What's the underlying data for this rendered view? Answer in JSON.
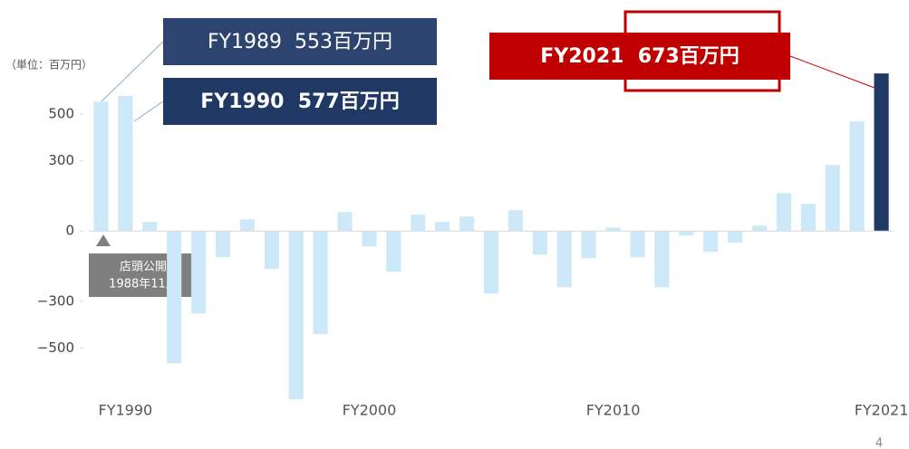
{
  "chart_data": {
    "type": "bar",
    "unit_label": "（単位：百万円）",
    "categories": [
      null,
      "FY1990",
      null,
      null,
      null,
      null,
      null,
      null,
      null,
      null,
      null,
      "FY2000",
      null,
      null,
      null,
      null,
      null,
      null,
      null,
      null,
      null,
      "FY2010",
      null,
      null,
      null,
      null,
      null,
      null,
      null,
      null,
      null,
      null,
      "FY2021"
    ],
    "values": [
      553,
      577,
      39,
      -565,
      -352,
      -112,
      50,
      -162,
      -719,
      -441,
      81,
      -66,
      -174,
      70,
      39,
      62,
      -267,
      89,
      -101,
      -240,
      -116,
      15,
      -112,
      -240,
      -19,
      -89,
      -50,
      23,
      162,
      116,
      282,
      468,
      673
    ],
    "colors": [
      "#cde9f9",
      "#cde9f9",
      "#cde9f9",
      "#cde9f9",
      "#cde9f9",
      "#cde9f9",
      "#cde9f9",
      "#cde9f9",
      "#cde9f9",
      "#cde9f9",
      "#cde9f9",
      "#cde9f9",
      "#cde9f9",
      "#cde9f9",
      "#cde9f9",
      "#cde9f9",
      "#cde9f9",
      "#cde9f9",
      "#cde9f9",
      "#cde9f9",
      "#cde9f9",
      "#cde9f9",
      "#cde9f9",
      "#cde9f9",
      "#cde9f9",
      "#cde9f9",
      "#cde9f9",
      "#cde9f9",
      "#cde9f9",
      "#cde9f9",
      "#cde9f9",
      "#cde9f9",
      "#1f3864"
    ],
    "ylim": [
      -730,
      720
    ],
    "yticks": [
      {
        "value": -500,
        "label": "−500"
      },
      {
        "value": -300,
        "label": "−300"
      },
      0,
      300,
      500
    ],
    "annotations": [
      "FY1989  553百万円",
      "FY1990  577百万円",
      "FY2021  673百万円",
      "店頭公開",
      "1988年11月"
    ],
    "page_number": "4"
  }
}
